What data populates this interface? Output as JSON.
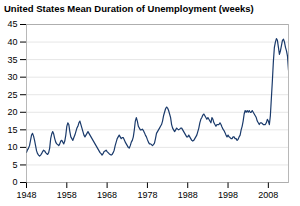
{
  "chart_data": {
    "type": "line",
    "title": "United States Mean Duration of Unemployment (weeks)",
    "color": "#1a3a6b",
    "grid": true,
    "xlim": [
      1948,
      2013
    ],
    "ylim": [
      0,
      45
    ],
    "xticks": [
      1948,
      1958,
      1968,
      1978,
      1988,
      1998,
      2008
    ],
    "yticks": [
      0,
      5,
      10,
      15,
      20,
      25,
      30,
      35,
      40,
      45
    ],
    "x": [
      1948.0,
      1948.25,
      1948.5,
      1948.75,
      1949.0,
      1949.25,
      1949.5,
      1949.75,
      1950.0,
      1950.25,
      1950.5,
      1950.75,
      1951.0,
      1951.25,
      1951.5,
      1951.75,
      1952.0,
      1952.25,
      1952.5,
      1952.75,
      1953.0,
      1953.25,
      1953.5,
      1953.75,
      1954.0,
      1954.25,
      1954.5,
      1954.75,
      1955.0,
      1955.25,
      1955.5,
      1955.75,
      1956.0,
      1956.25,
      1956.5,
      1956.75,
      1957.0,
      1957.25,
      1957.5,
      1957.75,
      1958.0,
      1958.25,
      1958.5,
      1958.75,
      1959.0,
      1959.25,
      1959.5,
      1959.75,
      1960.0,
      1960.25,
      1960.5,
      1960.75,
      1961.0,
      1961.25,
      1961.5,
      1961.75,
      1962.0,
      1962.25,
      1962.5,
      1962.75,
      1963.0,
      1963.25,
      1963.5,
      1963.75,
      1964.0,
      1964.25,
      1964.5,
      1964.75,
      1965.0,
      1965.25,
      1965.5,
      1965.75,
      1966.0,
      1966.25,
      1966.5,
      1966.75,
      1967.0,
      1967.25,
      1967.5,
      1967.75,
      1968.0,
      1968.25,
      1968.5,
      1968.75,
      1969.0,
      1969.25,
      1969.5,
      1969.75,
      1970.0,
      1970.25,
      1970.5,
      1970.75,
      1971.0,
      1971.25,
      1971.5,
      1971.75,
      1972.0,
      1972.25,
      1972.5,
      1972.75,
      1973.0,
      1973.25,
      1973.5,
      1973.75,
      1974.0,
      1974.25,
      1974.5,
      1974.75,
      1975.0,
      1975.25,
      1975.5,
      1975.75,
      1976.0,
      1976.25,
      1976.5,
      1976.75,
      1977.0,
      1977.25,
      1977.5,
      1977.75,
      1978.0,
      1978.25,
      1978.5,
      1978.75,
      1979.0,
      1979.25,
      1979.5,
      1979.75,
      1980.0,
      1980.25,
      1980.5,
      1980.75,
      1981.0,
      1981.25,
      1981.5,
      1981.75,
      1982.0,
      1982.25,
      1982.5,
      1982.75,
      1983.0,
      1983.25,
      1983.5,
      1983.75,
      1984.0,
      1984.25,
      1984.5,
      1984.75,
      1985.0,
      1985.25,
      1985.5,
      1985.75,
      1986.0,
      1986.25,
      1986.5,
      1986.75,
      1987.0,
      1987.25,
      1987.5,
      1987.75,
      1988.0,
      1988.25,
      1988.5,
      1988.75,
      1989.0,
      1989.25,
      1989.5,
      1989.75,
      1990.0,
      1990.25,
      1990.5,
      1990.75,
      1991.0,
      1991.25,
      1991.5,
      1991.75,
      1992.0,
      1992.25,
      1992.5,
      1992.75,
      1993.0,
      1993.25,
      1993.5,
      1993.75,
      1994.0,
      1994.25,
      1994.5,
      1994.75,
      1995.0,
      1995.25,
      1995.5,
      1995.75,
      1996.0,
      1996.25,
      1996.5,
      1996.75,
      1997.0,
      1997.25,
      1997.5,
      1997.75,
      1998.0,
      1998.25,
      1998.5,
      1998.75,
      1999.0,
      1999.25,
      1999.5,
      1999.75,
      2000.0,
      2000.25,
      2000.5,
      2000.75,
      2001.0,
      2001.25,
      2001.5,
      2001.75,
      2002.0,
      2002.25,
      2002.5,
      2002.75,
      2003.0,
      2003.25,
      2003.5,
      2003.75,
      2004.0,
      2004.25,
      2004.5,
      2004.75,
      2005.0,
      2005.25,
      2005.5,
      2005.75,
      2006.0,
      2006.25,
      2006.5,
      2006.75,
      2007.0,
      2007.25,
      2007.5,
      2007.75,
      2008.0,
      2008.25,
      2008.5,
      2008.75,
      2009.0,
      2009.25,
      2009.5,
      2009.75,
      2010.0,
      2010.25,
      2010.5,
      2010.75,
      2011.0,
      2011.25,
      2011.5,
      2011.75,
      2012.0,
      2012.25,
      2012.5,
      2012.75,
      2013.0
    ],
    "values": [
      8.6,
      9.3,
      9.8,
      10.5,
      12.0,
      13.5,
      14.0,
      13.2,
      12.0,
      10.5,
      9.0,
      8.2,
      7.8,
      7.5,
      7.8,
      8.2,
      8.8,
      9.2,
      9.0,
      8.5,
      8.2,
      8.0,
      8.5,
      9.8,
      12.5,
      13.8,
      14.5,
      13.8,
      12.5,
      11.5,
      11.0,
      10.8,
      10.5,
      11.0,
      11.8,
      12.0,
      11.5,
      11.0,
      11.8,
      13.5,
      16.0,
      17.0,
      16.5,
      14.5,
      13.0,
      12.5,
      12.0,
      12.8,
      13.5,
      14.5,
      15.5,
      16.0,
      17.0,
      17.5,
      16.5,
      15.5,
      14.5,
      13.5,
      13.0,
      13.5,
      14.0,
      14.5,
      14.0,
      13.5,
      13.0,
      12.5,
      12.0,
      11.5,
      11.0,
      10.5,
      10.0,
      9.5,
      9.0,
      8.5,
      8.2,
      7.8,
      8.2,
      8.8,
      9.0,
      9.2,
      8.8,
      8.5,
      8.2,
      8.0,
      7.8,
      8.0,
      8.5,
      9.2,
      10.5,
      11.5,
      12.5,
      13.0,
      13.5,
      13.0,
      12.5,
      12.8,
      12.8,
      12.2,
      11.5,
      11.0,
      10.5,
      10.0,
      9.8,
      10.5,
      11.5,
      12.0,
      13.0,
      15.0,
      17.5,
      18.5,
      17.5,
      16.0,
      15.5,
      15.0,
      15.0,
      15.2,
      14.8,
      14.2,
      13.5,
      13.0,
      12.2,
      11.5,
      11.0,
      11.0,
      10.8,
      10.5,
      10.8,
      11.2,
      12.5,
      14.0,
      14.5,
      15.0,
      15.5,
      16.0,
      16.5,
      17.5,
      19.0,
      20.0,
      21.0,
      21.5,
      21.2,
      20.5,
      19.5,
      18.5,
      16.5,
      15.5,
      15.0,
      14.5,
      15.0,
      15.5,
      15.2,
      15.0,
      15.2,
      15.5,
      15.5,
      15.0,
      14.5,
      14.0,
      13.5,
      13.0,
      13.0,
      13.5,
      13.0,
      12.5,
      12.0,
      11.8,
      12.0,
      12.5,
      13.0,
      13.5,
      14.5,
      15.5,
      17.0,
      18.0,
      18.5,
      19.2,
      19.5,
      19.0,
      18.5,
      18.0,
      18.5,
      18.0,
      17.5,
      17.0,
      18.5,
      18.0,
      17.0,
      16.5,
      16.0,
      16.5,
      16.5,
      16.5,
      17.0,
      16.5,
      15.8,
      15.2,
      14.8,
      14.2,
      13.5,
      13.0,
      13.5,
      13.0,
      12.8,
      12.5,
      12.5,
      13.0,
      13.0,
      12.5,
      12.5,
      12.0,
      12.3,
      13.0,
      13.5,
      15.0,
      16.0,
      17.5,
      19.5,
      20.5,
      20.0,
      20.5,
      20.0,
      20.5,
      20.0,
      20.0,
      20.5,
      20.0,
      19.5,
      19.0,
      18.5,
      17.5,
      17.0,
      16.5,
      17.0,
      17.0,
      16.8,
      16.5,
      16.5,
      16.5,
      17.0,
      18.0,
      17.5,
      16.5,
      19.0,
      24.0,
      29.0,
      34.5,
      38.5,
      40.0,
      41.0,
      40.5,
      38.5,
      36.5,
      37.5,
      39.0,
      40.5,
      40.8,
      40.0,
      38.5,
      37.5,
      36.0,
      32.0
    ]
  }
}
